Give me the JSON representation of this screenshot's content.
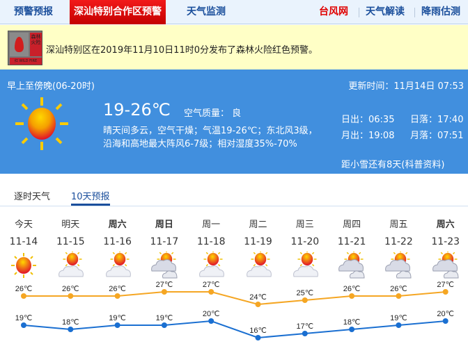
{
  "nav": {
    "items": [
      "预警预报",
      "深汕特别合作区预警",
      "天气监测"
    ],
    "right": [
      "台风网",
      "天气解读",
      "降雨估测"
    ],
    "colors": {
      "active": "#e00000",
      "typhoon": "#e00000",
      "link": "#1b4f9c"
    }
  },
  "alert": {
    "icon_top": "森林火险",
    "icon_bottom": "红 WILD FIRE",
    "text": "深汕特别区在2019年11月10日11时0分发布了森林火险红色预警。"
  },
  "now": {
    "period": "早上至傍晚(06-20时)",
    "updated": "更新时间：11月14日 07:53",
    "temp": "19-26℃",
    "aqi": "空气质量： 良",
    "desc1": "晴天间多云，空气干燥；气温19-26℃；东北风3级，",
    "desc2": "沿海和高地最大阵风6-7级；相对湿度35%-70%",
    "sunrise": "日出：06:35",
    "sunset": "日落：17:40",
    "moonrise": "月出：19:08",
    "moonset": "月落：07:51",
    "solar_term": "距小雪还有8天(科普资料)",
    "icon": "sunny-icon",
    "bg": "#418fde"
  },
  "tabs": [
    {
      "label": "逐时天气"
    },
    {
      "label": "10天预报",
      "active": true
    }
  ],
  "chart_data": {
    "type": "line",
    "categories": [
      "11-14",
      "11-15",
      "11-16",
      "11-17",
      "11-18",
      "11-19",
      "11-20",
      "11-21",
      "11-22",
      "11-23"
    ],
    "days": [
      "今天",
      "明天",
      "周六",
      "周日",
      "周一",
      "周二",
      "周三",
      "周四",
      "周五",
      "周六"
    ],
    "bold": [
      false,
      false,
      true,
      true,
      false,
      false,
      false,
      false,
      false,
      true
    ],
    "icons": [
      "sunny",
      "partly-cloudy",
      "partly-cloudy",
      "cloudy",
      "partly-cloudy",
      "partly-cloudy",
      "partly-cloudy",
      "cloudy",
      "cloudy",
      "cloudy"
    ],
    "unit": "℃",
    "series": [
      {
        "values": [
          26,
          26,
          26,
          27,
          27,
          24,
          25,
          26,
          26,
          27
        ],
        "color": "#f5a623"
      },
      {
        "values": [
          19,
          18,
          19,
          19,
          20,
          16,
          17,
          18,
          19,
          20
        ],
        "color": "#1a6fd1"
      }
    ]
  }
}
